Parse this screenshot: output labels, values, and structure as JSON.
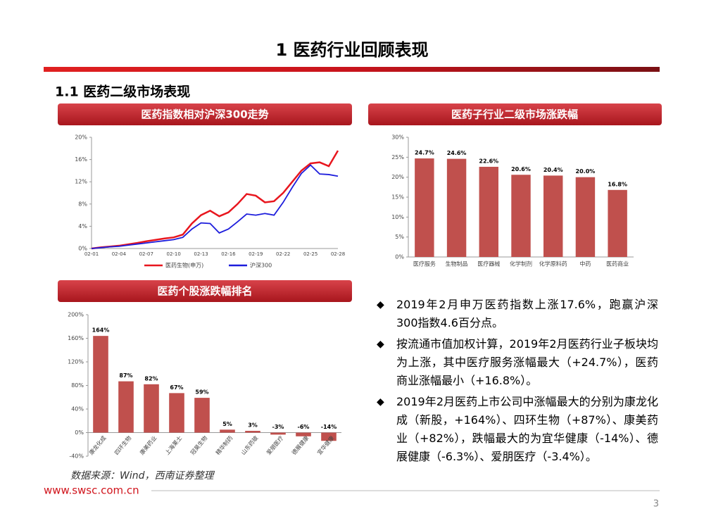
{
  "header": {
    "title": "1 医药行业回顾表现",
    "subtitle": "1.1 医药二级市场表现"
  },
  "panels": [
    "医药指数相对沪深300走势",
    "医药子行业二级市场涨跌幅",
    "医药个股涨跌幅排名"
  ],
  "chart_data": [
    {
      "type": "line",
      "categories": [
        "02-01",
        null,
        null,
        "02-04",
        null,
        null,
        "02-07",
        null,
        null,
        "02-10",
        null,
        null,
        "02-13",
        null,
        null,
        "02-16",
        null,
        null,
        "02-19",
        null,
        null,
        "02-22",
        null,
        null,
        "02-25",
        null,
        null,
        "02-28"
      ],
      "series": [
        {
          "name": "医药生物(申万)",
          "color": "#e8161e",
          "values": [
            0,
            0.2,
            0.35,
            0.5,
            0.75,
            1.0,
            1.3,
            1.55,
            1.8,
            2.0,
            2.5,
            4.5,
            6.0,
            6.8,
            5.8,
            6.5,
            8.0,
            9.8,
            9.5,
            8.3,
            8.5,
            10.0,
            12.0,
            14.0,
            15.3,
            15.5,
            14.8,
            17.6
          ]
        },
        {
          "name": "沪深300",
          "color": "#1d1ddc",
          "values": [
            0,
            0.15,
            0.3,
            0.4,
            0.6,
            0.8,
            1.0,
            1.2,
            1.4,
            1.6,
            2.0,
            3.5,
            4.6,
            4.5,
            2.8,
            3.5,
            4.8,
            6.2,
            6.0,
            6.3,
            6.0,
            8.3,
            11.0,
            13.5,
            15.0,
            13.4,
            13.3,
            13.0
          ]
        }
      ],
      "ylim": [
        0,
        20
      ],
      "yticks": [
        {
          "value": 0,
          "label": "0%"
        },
        {
          "value": 4,
          "label": "4%"
        },
        {
          "value": 8,
          "label": "8%"
        },
        {
          "value": 12,
          "label": "12%"
        },
        {
          "value": 16,
          "label": "16%"
        },
        {
          "value": 20,
          "label": "20%"
        }
      ],
      "legend": "bottom"
    },
    {
      "type": "bar",
      "color": "#c0504d",
      "categories": [
        "医疗服务",
        "生物制品",
        "医疗器械",
        "化学制剂",
        "化学原料药",
        "中药",
        "医药商业"
      ],
      "values": [
        24.7,
        24.6,
        22.6,
        20.6,
        20.4,
        20.0,
        16.8
      ],
      "value_labels": [
        "24.7%",
        "24.6%",
        "22.6%",
        "20.6%",
        "20.4%",
        "20.0%",
        "16.8%"
      ],
      "ylim": [
        0,
        30
      ],
      "yticks": [
        {
          "value": 0,
          "label": "0%"
        },
        {
          "value": 5,
          "label": "5%"
        },
        {
          "value": 10,
          "label": "10%"
        },
        {
          "value": 15,
          "label": "15%"
        },
        {
          "value": 20,
          "label": "20%"
        },
        {
          "value": 25,
          "label": "25%"
        },
        {
          "value": 30,
          "label": "30%"
        }
      ]
    },
    {
      "type": "bar",
      "color": "#c0504d",
      "categories": [
        "康龙化成",
        "四环生物",
        "康美药业",
        "上海莱士",
        "冠昊生物",
        "精华制药",
        "山东药玻",
        "爱朋医疗",
        "德展健康",
        "宜华健康"
      ],
      "values": [
        164,
        87,
        82,
        67,
        59,
        5,
        3,
        -3.4,
        -6.3,
        -14
      ],
      "value_labels": [
        "164%",
        "87%",
        "82%",
        "67%",
        "59%",
        "5%",
        "3%",
        "-3%",
        "-6%",
        "-14%"
      ],
      "ylim": [
        -40,
        200
      ],
      "yticks": [
        {
          "value": -40,
          "label": "-40%"
        },
        {
          "value": 0,
          "label": "0%"
        },
        {
          "value": 40,
          "label": "40%"
        },
        {
          "value": 80,
          "label": "80%"
        },
        {
          "value": 120,
          "label": "120%"
        },
        {
          "value": 160,
          "label": "160%"
        },
        {
          "value": 200,
          "label": "200%"
        }
      ],
      "rotate_labels": true
    }
  ],
  "bullets": [
    "2019年2月申万医药指数上涨17.6%，跑赢沪深300指数4.6百分点。",
    "按流通市值加权计算，2019年2月医药行业子板块均为上涨，其中医疗服务涨幅最大（+24.7%），医药商业涨幅最小（+16.8%）。",
    "2019年2月医药上市公司中涨幅最大的分别为康龙化成（新股，+164%）、四环生物（+87%）、康美药业（+82%），跌幅最大的为宜华健康（-14%）、德展健康（-6.3%）、爱朋医疗（-3.4%）。"
  ],
  "footer": {
    "source": "数据来源：Wind，西南证券整理",
    "url": "www.swsc.com.cn",
    "page": "3"
  }
}
